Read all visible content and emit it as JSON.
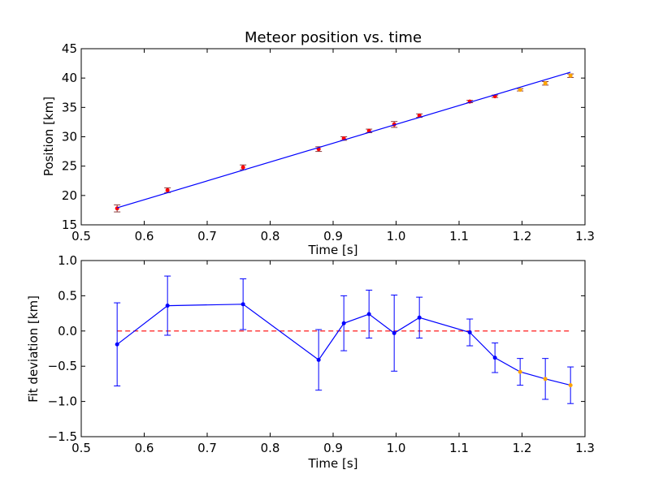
{
  "chart_data": [
    {
      "type": "scatter",
      "title": "Meteor position vs. time",
      "xlabel": "Time [s]",
      "ylabel": "Position [km]",
      "xlim": [
        0.5,
        1.3
      ],
      "ylim": [
        15,
        45
      ],
      "xticks": [
        "0.5",
        "0.6",
        "0.7",
        "0.8",
        "0.9",
        "1.0",
        "1.1",
        "1.2",
        "1.3"
      ],
      "yticks": [
        "15",
        "20",
        "25",
        "30",
        "35",
        "40",
        "45"
      ],
      "grid": false,
      "series": [
        {
          "kind": "errorbar",
          "color": "#ff0000",
          "x": [
            0.557,
            0.637,
            0.757,
            0.877,
            0.917,
            0.957,
            0.997,
            1.037,
            1.117,
            1.157
          ],
          "y": [
            17.8,
            20.9,
            24.8,
            27.9,
            29.7,
            31.0,
            32.1,
            33.6,
            36.0,
            36.9
          ],
          "yerr": [
            0.6,
            0.4,
            0.4,
            0.4,
            0.3,
            0.3,
            0.5,
            0.3,
            0.2,
            0.2
          ]
        },
        {
          "kind": "errorbar",
          "color": "#ffa500",
          "x": [
            1.197,
            1.237,
            1.277
          ],
          "y": [
            38.0,
            39.1,
            40.4
          ],
          "yerr": [
            0.2,
            0.3,
            0.3
          ]
        },
        {
          "kind": "fit-line",
          "color": "#0000ff",
          "x": [
            0.557,
            1.277
          ],
          "y": [
            17.9,
            41.0
          ]
        }
      ]
    },
    {
      "type": "line",
      "title": "",
      "xlabel": "Time [s]",
      "ylabel": "Fit deviation [km]",
      "xlim": [
        0.5,
        1.3
      ],
      "ylim": [
        -1.5,
        1.0
      ],
      "xticks": [
        "0.5",
        "0.6",
        "0.7",
        "0.8",
        "0.9",
        "1.0",
        "1.1",
        "1.2",
        "1.3"
      ],
      "yticks": [
        "−1.5",
        "−1.0",
        "−0.5",
        "0.0",
        "0.5",
        "1.0"
      ],
      "grid": false,
      "reference_line": {
        "y": 0.0,
        "color": "#ff0000",
        "style": "dashed"
      },
      "series": [
        {
          "kind": "errorbar-line",
          "color": "#0000ff",
          "x": [
            0.557,
            0.637,
            0.757,
            0.877,
            0.917,
            0.957,
            0.997,
            1.037,
            1.117,
            1.157,
            1.197,
            1.237,
            1.277
          ],
          "y": [
            -0.19,
            0.36,
            0.38,
            -0.41,
            0.11,
            0.24,
            -0.03,
            0.19,
            -0.02,
            -0.38,
            -0.58,
            -0.68,
            -0.77
          ],
          "yerr": [
            0.59,
            0.42,
            0.36,
            0.43,
            0.39,
            0.34,
            0.54,
            0.29,
            0.19,
            0.21,
            0.19,
            0.29,
            0.26
          ],
          "point_colors": [
            "#0000ff",
            "#0000ff",
            "#0000ff",
            "#0000ff",
            "#0000ff",
            "#0000ff",
            "#0000ff",
            "#0000ff",
            "#0000ff",
            "#0000ff",
            "#ffa500",
            "#ffa500",
            "#ffa500"
          ]
        }
      ]
    }
  ]
}
